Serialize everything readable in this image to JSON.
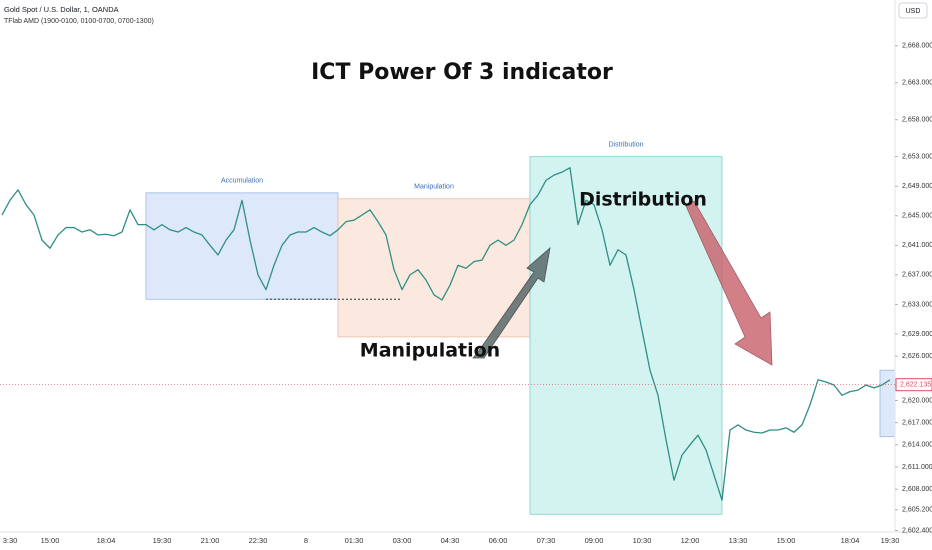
{
  "chart_data": {
    "type": "line",
    "title": "ICT Power Of 3 indicator",
    "symbol": "Gold Spot / U.S. Dollar, 1, OANDA",
    "indicator": "TFlab AMD (1900-0100, 0100-0700, 0700-1300)",
    "currency": "USD",
    "categories": [
      null,
      "3:30",
      null,
      null,
      null,
      null,
      "15:00",
      null,
      null,
      null,
      null,
      null,
      null,
      "18:04",
      null,
      null,
      null,
      null,
      null,
      null,
      "19:30",
      null,
      null,
      null,
      null,
      null,
      "21:00",
      null,
      null,
      null,
      null,
      null,
      "22:30",
      null,
      null,
      null,
      null,
      null,
      "8",
      null,
      null,
      null,
      null,
      null,
      "01:30",
      null,
      null,
      null,
      null,
      null,
      "03:00",
      null,
      null,
      null,
      null,
      null,
      "04:30",
      null,
      null,
      null,
      null,
      null,
      "06:00",
      null,
      null,
      null,
      null,
      null,
      "07:30",
      null,
      null,
      null,
      null,
      null,
      "09:00",
      null,
      null,
      null,
      null,
      null,
      "10:30",
      null,
      null,
      null,
      null,
      null,
      "12:00",
      null,
      null,
      null,
      null,
      null,
      "13:30",
      null,
      null,
      null,
      null,
      null,
      "15:00",
      null,
      null,
      null,
      null,
      null,
      null,
      null,
      "18:04",
      null,
      null,
      null,
      null,
      "19:30"
    ],
    "series": [
      {
        "color": "#2f8f86",
        "values": [
          2645.1,
          2647.1,
          2648.5,
          2646.5,
          2645.1,
          2641.7,
          2640.6,
          2642.4,
          2643.4,
          2643.4,
          2642.8,
          2643.1,
          2642.4,
          2642.5,
          2642.3,
          2642.8,
          2645.8,
          2643.8,
          2643.8,
          2643.1,
          2643.8,
          2643.1,
          2642.8,
          2643.4,
          2642.8,
          2642.4,
          2641.0,
          2639.7,
          2641.7,
          2643.1,
          2647.1,
          2641.7,
          2637.0,
          2635.0,
          2638.3,
          2641.0,
          2642.4,
          2642.8,
          2642.8,
          2643.4,
          2642.8,
          2642.3,
          2643.1,
          2644.2,
          2644.4,
          2645.1,
          2645.8,
          2644.2,
          2642.4,
          2637.7,
          2635.0,
          2637.0,
          2637.7,
          2636.3,
          2634.3,
          2633.6,
          2635.6,
          2638.3,
          2637.9,
          2638.8,
          2639.0,
          2641.0,
          2641.7,
          2641.0,
          2641.7,
          2643.8,
          2646.5,
          2647.8,
          2649.8,
          2650.5,
          2650.9,
          2651.5,
          2643.8,
          2647.1,
          2646.5,
          2643.1,
          2638.3,
          2640.4,
          2639.7,
          2635.0,
          2629.5,
          2624.1,
          2620.7,
          2614.7,
          2609.2,
          2612.6,
          2614.0,
          2615.3,
          2613.3,
          2609.9,
          2606.5,
          2616.0,
          2616.7,
          2616.0,
          2615.7,
          2615.6,
          2616.0,
          2616.0,
          2616.3,
          2615.7,
          2616.7,
          2619.4,
          2622.8,
          2622.5,
          2622.1,
          2620.7,
          2621.2,
          2621.4,
          2622.1,
          2621.7,
          2622.1,
          2622.8
        ]
      }
    ],
    "last_price": {
      "value": 2622.135,
      "label": "2,622.135"
    },
    "zones": [
      {
        "label": "Accumulation",
        "high": 2648.1,
        "low": 2633.7,
        "color": "#dde9fb"
      },
      {
        "label": "Manipulation",
        "high": 2647.3,
        "low": 2628.6,
        "color": "#fbe9df"
      },
      {
        "label": "Distribution",
        "high": 2653.0,
        "low": 2604.6,
        "color": "#d3f3f1"
      },
      {
        "high": 2624.1,
        "low": 2615.1,
        "color": "#dde9fb"
      }
    ],
    "annotations": [
      "Manipulation",
      "Distribution"
    ],
    "ylim": [
      2602.2,
      2674.2
    ],
    "yticks": [
      {
        "value": 2602.4,
        "label": "2,602.400"
      },
      {
        "value": 2605.2,
        "label": "2,605.200"
      },
      {
        "value": 2608,
        "label": "2,608.000"
      },
      {
        "value": 2611,
        "label": "2,611.000"
      },
      {
        "value": 2614,
        "label": "2,614.000"
      },
      {
        "value": 2617,
        "label": "2,617.000"
      },
      {
        "value": 2620,
        "label": "2,620.000"
      },
      {
        "value": 2622,
        "label": "2,622.000"
      },
      {
        "value": 2626,
        "label": "2,626.000"
      },
      {
        "value": 2629,
        "label": "2,629.000"
      },
      {
        "value": 2633,
        "label": "2,633.000"
      },
      {
        "value": 2637,
        "label": "2,637.000"
      },
      {
        "value": 2641,
        "label": "2,641.000"
      },
      {
        "value": 2645,
        "label": "2,645.000"
      },
      {
        "value": 2649,
        "label": "2,649.000"
      },
      {
        "value": 2653,
        "label": "2,653.000"
      },
      {
        "value": 2658,
        "label": "2,658.000"
      },
      {
        "value": 2663,
        "label": "2,663.000"
      },
      {
        "value": 2668,
        "label": "2,668.000"
      }
    ]
  }
}
